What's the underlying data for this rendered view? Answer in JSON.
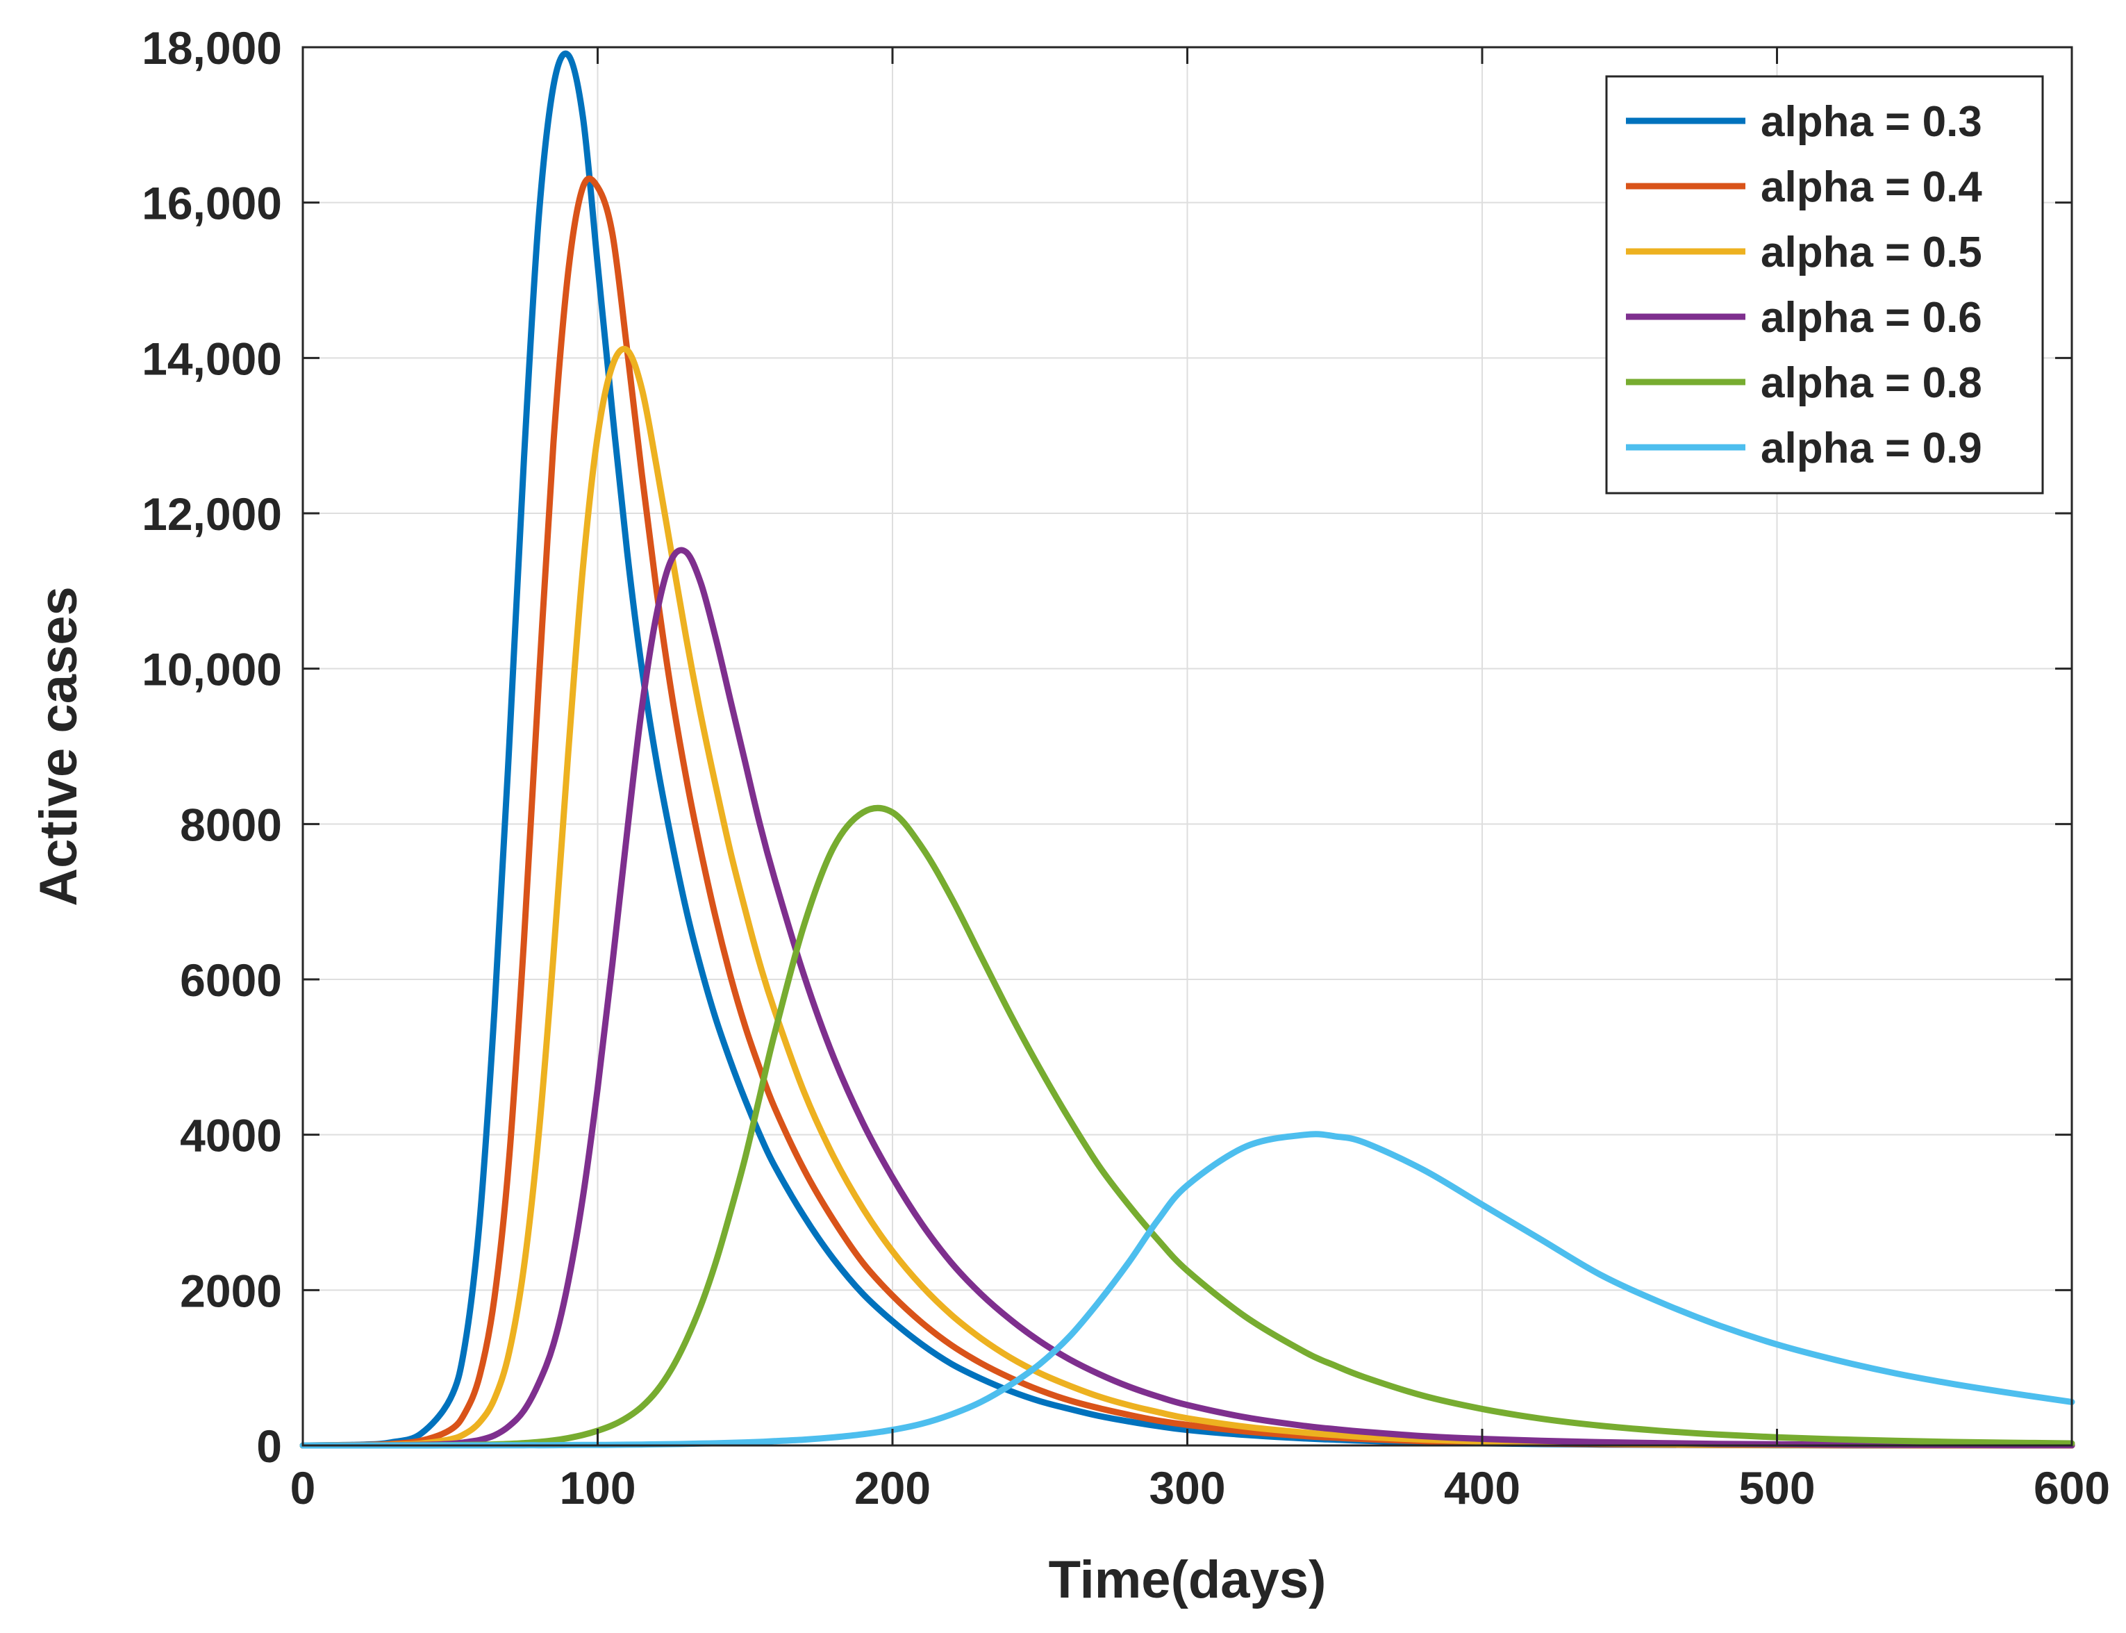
{
  "chart_data": {
    "type": "line",
    "title": "",
    "xlabel": "Time(days)",
    "ylabel": "Active cases",
    "xlim": [
      0,
      600
    ],
    "ylim": [
      0,
      18000
    ],
    "grid": true,
    "legend_position": "top-right",
    "x_ticks": [
      0,
      100,
      200,
      300,
      400,
      500,
      600
    ],
    "x_tick_labels": [
      "0",
      "100",
      "200",
      "300",
      "400",
      "500",
      "600"
    ],
    "y_ticks": [
      0,
      2000,
      4000,
      6000,
      8000,
      10000,
      12000,
      14000,
      16000,
      18000
    ],
    "y_tick_labels": [
      "0",
      "2000",
      "4000",
      "6000",
      "8000",
      "10,000",
      "12,000",
      "14,000",
      "16,000",
      "18,000"
    ],
    "x": [
      0,
      20,
      30,
      40,
      50,
      55,
      60,
      65,
      70,
      75,
      80,
      85,
      90,
      95,
      100,
      105,
      110,
      115,
      120,
      125,
      130,
      135,
      140,
      145,
      150,
      155,
      160,
      170,
      180,
      190,
      200,
      210,
      220,
      230,
      240,
      250,
      260,
      270,
      280,
      290,
      300,
      320,
      340,
      350,
      360,
      380,
      400,
      420,
      440,
      460,
      480,
      500,
      520,
      540,
      560,
      580,
      600
    ],
    "series": [
      {
        "name": "alpha = 0.3",
        "color": "#0072BD",
        "values": [
          0,
          10,
          40,
          150,
          600,
          1300,
          2900,
          5600,
          9000,
          12700,
          15800,
          17500,
          17900,
          17100,
          15200,
          13300,
          11500,
          10000,
          8800,
          7800,
          6900,
          6150,
          5500,
          4950,
          4450,
          4000,
          3600,
          2950,
          2400,
          1950,
          1600,
          1300,
          1050,
          860,
          700,
          570,
          470,
          380,
          310,
          250,
          200,
          135,
          90,
          75,
          60,
          40,
          27,
          18,
          12,
          8,
          5,
          3,
          2,
          1,
          1,
          0,
          0
        ]
      },
      {
        "name": "alpha = 0.4",
        "color": "#D95319",
        "values": [
          0,
          5,
          20,
          60,
          200,
          420,
          900,
          1900,
          3700,
          6500,
          9800,
          12900,
          15100,
          16200,
          16200,
          15600,
          14100,
          12500,
          11000,
          9700,
          8600,
          7650,
          6800,
          6050,
          5400,
          4850,
          4350,
          3550,
          2900,
          2350,
          1930,
          1580,
          1290,
          1060,
          870,
          710,
          580,
          480,
          395,
          320,
          265,
          180,
          120,
          100,
          82,
          55,
          37,
          25,
          17,
          11,
          7,
          5,
          3,
          2,
          1,
          1,
          0
        ]
      },
      {
        "name": "alpha = 0.5",
        "color": "#EDB120",
        "values": [
          0,
          3,
          8,
          25,
          80,
          150,
          300,
          600,
          1200,
          2300,
          4000,
          6300,
          8900,
          11300,
          13000,
          13900,
          14100,
          13600,
          12600,
          11500,
          10400,
          9400,
          8500,
          7650,
          6900,
          6200,
          5600,
          4550,
          3720,
          3050,
          2500,
          2050,
          1680,
          1380,
          1130,
          930,
          770,
          630,
          520,
          430,
          350,
          240,
          165,
          135,
          110,
          75,
          52,
          35,
          24,
          16,
          11,
          7,
          5,
          3,
          2,
          1,
          1
        ]
      },
      {
        "name": "alpha = 0.6",
        "color": "#7E2F8E",
        "values": [
          0,
          1,
          3,
          8,
          20,
          40,
          70,
          130,
          250,
          450,
          800,
          1300,
          2100,
          3200,
          4600,
          6200,
          7900,
          9500,
          10700,
          11400,
          11500,
          11100,
          10400,
          9600,
          8800,
          8000,
          7300,
          6050,
          5000,
          4150,
          3450,
          2850,
          2350,
          1950,
          1620,
          1340,
          1110,
          920,
          760,
          630,
          520,
          360,
          250,
          210,
          175,
          120,
          85,
          60,
          42,
          30,
          21,
          15,
          10,
          7,
          5,
          3,
          2
        ]
      },
      {
        "name": "alpha = 0.8",
        "color": "#77AC30",
        "values": [
          0,
          0,
          1,
          2,
          4,
          6,
          9,
          13,
          20,
          30,
          45,
          65,
          95,
          135,
          190,
          260,
          360,
          500,
          700,
          980,
          1350,
          1800,
          2350,
          3000,
          3700,
          4500,
          5300,
          6700,
          7700,
          8150,
          8150,
          7700,
          7050,
          6300,
          5550,
          4850,
          4200,
          3600,
          3100,
          2650,
          2250,
          1650,
          1200,
          1030,
          880,
          640,
          470,
          345,
          255,
          190,
          140,
          105,
          80,
          60,
          45,
          35,
          27
        ]
      },
      {
        "name": "alpha = 0.9",
        "color": "#4DBEEE",
        "values": [
          0,
          0,
          0,
          0,
          1,
          1,
          1,
          2,
          2,
          3,
          3,
          4,
          5,
          6,
          7,
          8,
          10,
          12,
          14,
          17,
          20,
          24,
          28,
          33,
          39,
          46,
          55,
          75,
          105,
          145,
          200,
          280,
          400,
          560,
          780,
          1050,
          1400,
          1850,
          2350,
          2900,
          3350,
          3850,
          4000,
          3980,
          3900,
          3550,
          3100,
          2650,
          2200,
          1850,
          1550,
          1300,
          1100,
          930,
          790,
          670,
          560
        ]
      }
    ]
  }
}
